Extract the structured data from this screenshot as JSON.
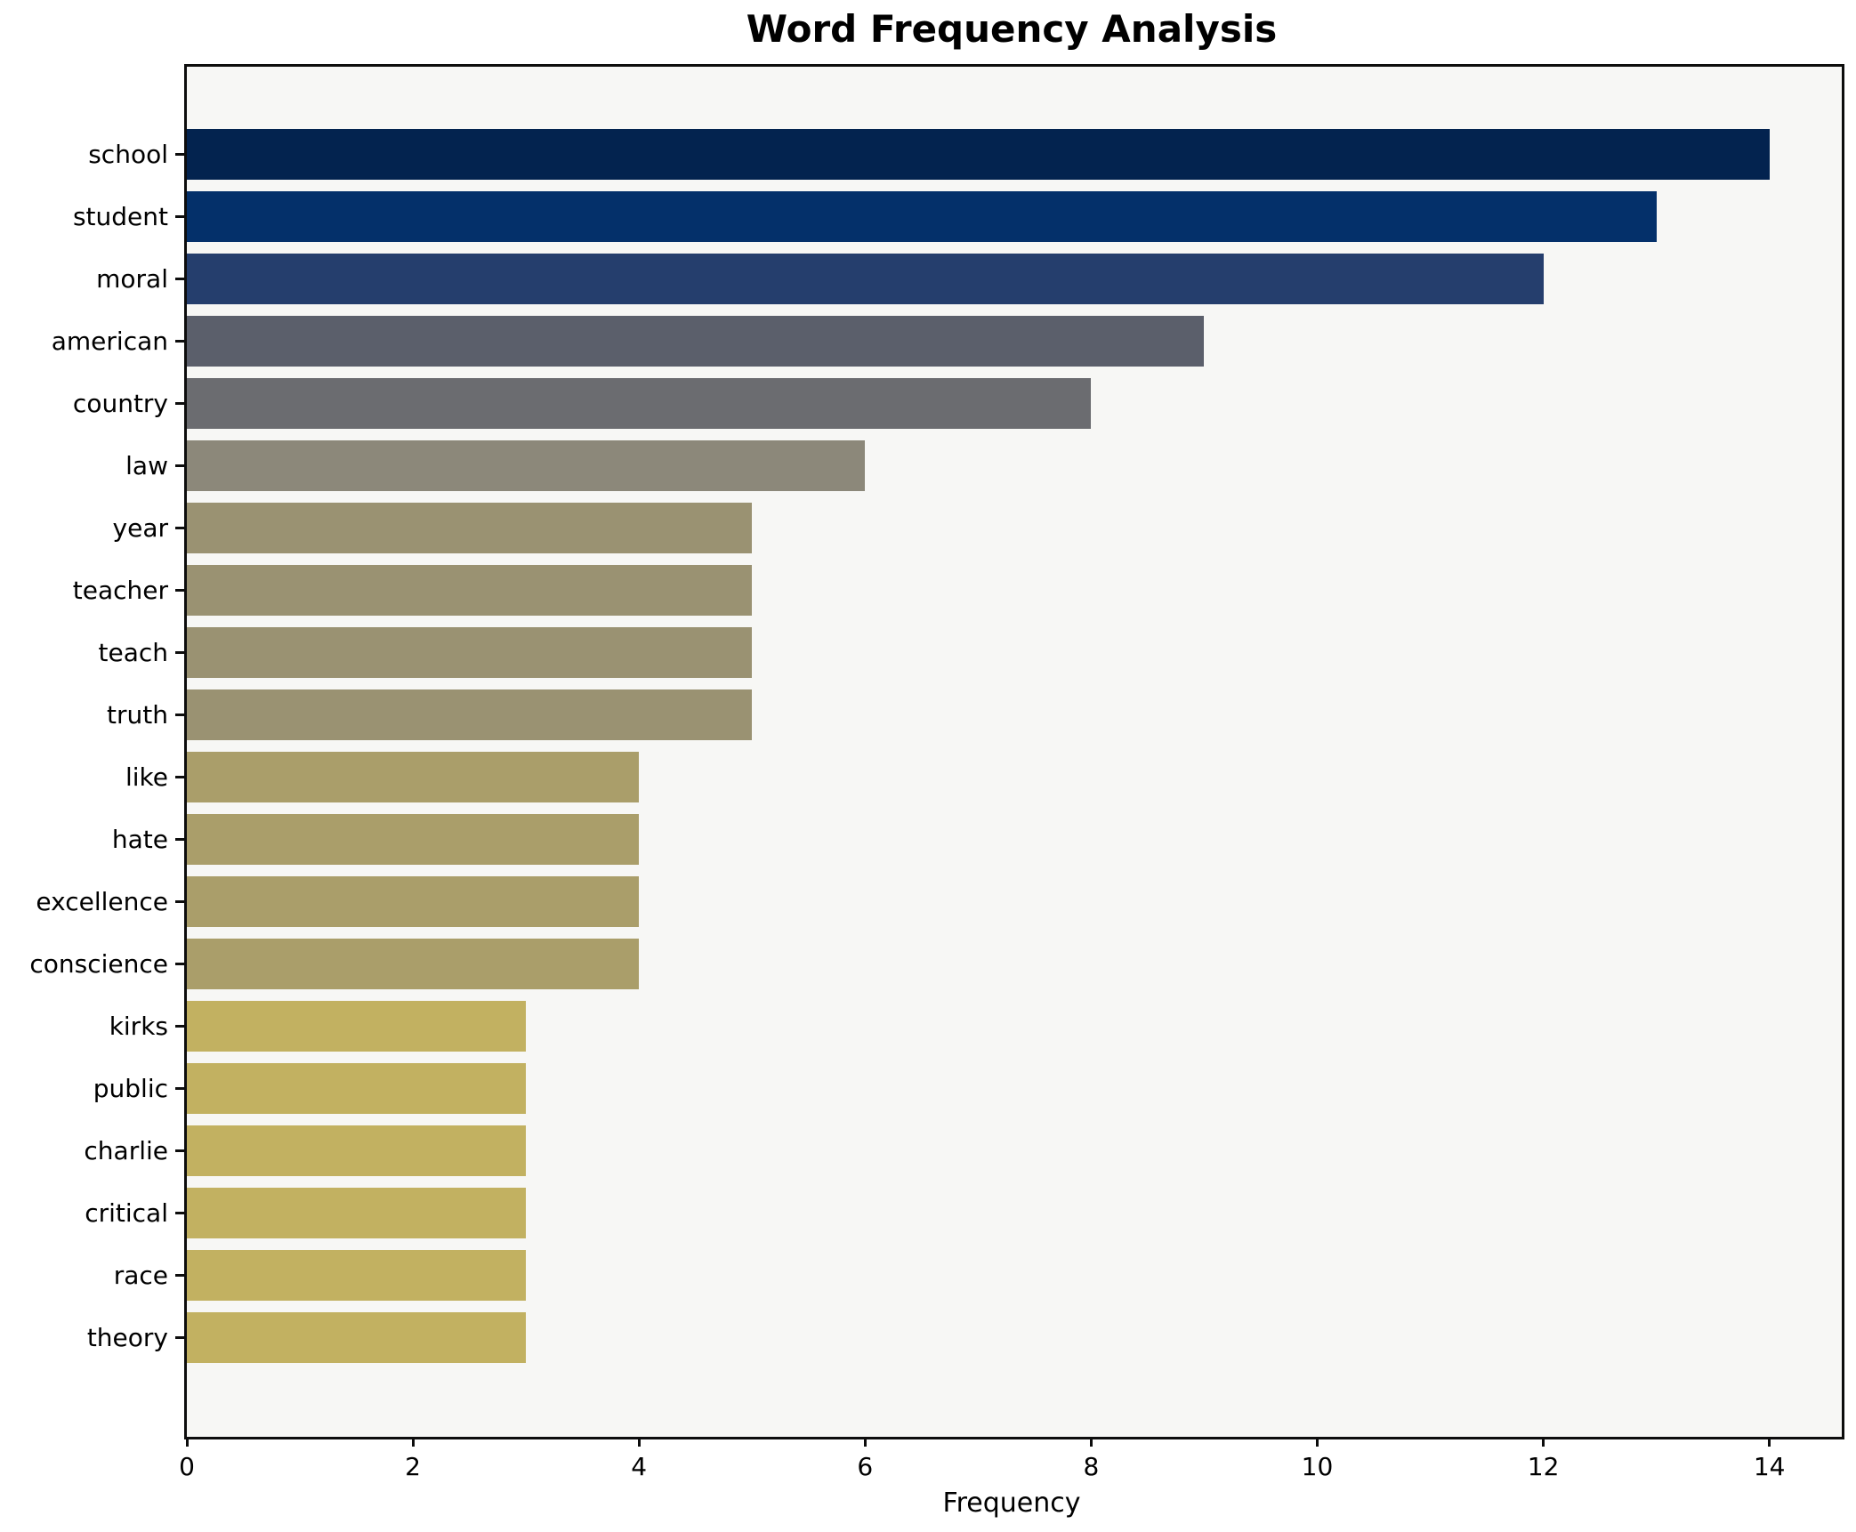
{
  "title": "Word Frequency Analysis",
  "xlabel": "Frequency",
  "chart_data": {
    "type": "bar",
    "orientation": "horizontal",
    "title": "Word Frequency Analysis",
    "xlabel": "Frequency",
    "ylabel": "",
    "categories": [
      "school",
      "student",
      "moral",
      "american",
      "country",
      "law",
      "year",
      "teacher",
      "teach",
      "truth",
      "like",
      "hate",
      "excellence",
      "conscience",
      "kirks",
      "public",
      "charlie",
      "critical",
      "race",
      "theory"
    ],
    "values": [
      14,
      13,
      12,
      9,
      8,
      6,
      5,
      5,
      5,
      5,
      4,
      4,
      4,
      4,
      3,
      3,
      3,
      3,
      3,
      3
    ],
    "bar_colors": [
      "#03234f",
      "#04306a",
      "#253e6d",
      "#5b5f6b",
      "#6b6c70",
      "#8c887a",
      "#9a9272",
      "#9a9272",
      "#9a9272",
      "#9a9272",
      "#aa9e6a",
      "#aa9e6a",
      "#aa9e6a",
      "#aa9e6a",
      "#c2b161",
      "#c2b161",
      "#c2b161",
      "#c2b161",
      "#c2b161",
      "#c2b161"
    ],
    "x_ticks": [
      0,
      2,
      4,
      6,
      8,
      10,
      12,
      14
    ],
    "xlim": [
      0,
      14.64
    ],
    "grid": false,
    "legend": "none",
    "plot_background": "#f7f7f5",
    "figure_background": "#ffffff",
    "spine_color": "#0d0d0d"
  }
}
